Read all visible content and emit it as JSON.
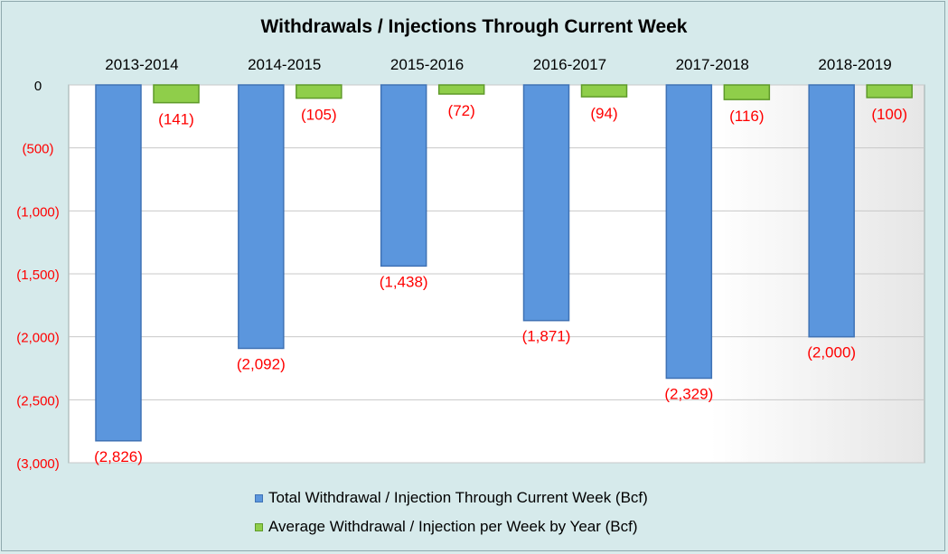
{
  "chart_data": {
    "type": "bar",
    "title": "Withdrawals / Injections Through Current Week",
    "categories": [
      "2013-2014",
      "2014-2015",
      "2015-2016",
      "2016-2017",
      "2017-2018",
      "2018-2019"
    ],
    "series": [
      {
        "name": "Total Withdrawal / Injection Through Current Week (Bcf)",
        "values": [
          -2826,
          -2092,
          -1438,
          -1871,
          -2329,
          -2000
        ],
        "labels": [
          "(2,826)",
          "(2,092)",
          "(1,438)",
          "(1,871)",
          "(2,329)",
          "(2,000)"
        ],
        "color": "#5b96dd"
      },
      {
        "name": "Average Withdrawal / Injection per Week by Year (Bcf)",
        "values": [
          -141,
          -105,
          -72,
          -94,
          -116,
          -100
        ],
        "labels": [
          "(141)",
          "(105)",
          "(72)",
          "(94)",
          "(116)",
          "(100)"
        ],
        "color": "#8fce4a"
      }
    ],
    "yticks": [
      0,
      -500,
      -1000,
      -1500,
      -2000,
      -2500,
      -3000
    ],
    "ytick_labels": [
      "0",
      "(500)",
      "(1,000)",
      "(1,500)",
      "(2,000)",
      "(2,500)",
      "(3,000)"
    ],
    "ylim": [
      -3000,
      0
    ],
    "grid": true,
    "legend_position": "bottom",
    "label_color": "#ff0000"
  }
}
